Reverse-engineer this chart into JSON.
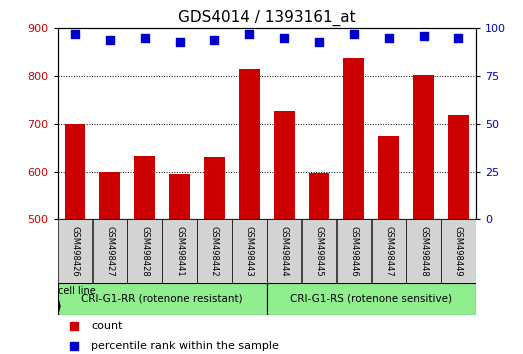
{
  "title": "GDS4014 / 1393161_at",
  "categories": [
    "GSM498426",
    "GSM498427",
    "GSM498428",
    "GSM498441",
    "GSM498442",
    "GSM498443",
    "GSM498444",
    "GSM498445",
    "GSM498446",
    "GSM498447",
    "GSM498448",
    "GSM498449"
  ],
  "bar_values": [
    700,
    600,
    633,
    595,
    630,
    815,
    728,
    597,
    838,
    675,
    803,
    718
  ],
  "dot_values_pct": [
    97,
    94,
    95,
    93,
    94,
    97,
    95,
    93,
    97,
    95,
    96,
    95
  ],
  "bar_color": "#cc0000",
  "dot_color": "#0000cc",
  "ylim_left": [
    500,
    900
  ],
  "ylim_right": [
    0,
    100
  ],
  "yticks_left": [
    500,
    600,
    700,
    800,
    900
  ],
  "yticks_right": [
    0,
    25,
    50,
    75,
    100
  ],
  "group1_label": "CRI-G1-RR (rotenone resistant)",
  "group2_label": "CRI-G1-RS (rotenone sensitive)",
  "group1_indices": [
    0,
    1,
    2,
    3,
    4,
    5
  ],
  "group2_indices": [
    6,
    7,
    8,
    9,
    10,
    11
  ],
  "cell_line_label": "cell line",
  "legend_count_label": "count",
  "legend_pct_label": "percentile rank within the sample",
  "group_bg_color": "#90ee90",
  "tick_label_bg": "#d3d3d3",
  "xlabel_color": "#cc0000",
  "right_axis_color": "#0000cc",
  "title_fontsize": 11,
  "tick_fontsize": 8
}
